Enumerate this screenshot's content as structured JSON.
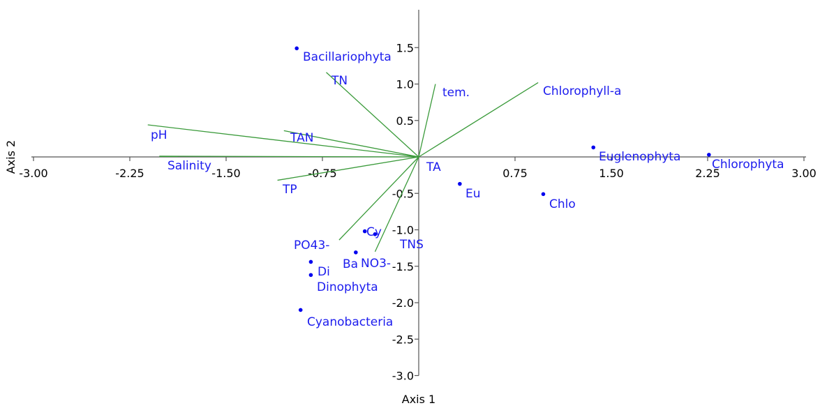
{
  "chart_data": {
    "type": "scatter",
    "xlabel": "Axis 1",
    "ylabel": "Axis 2",
    "xlim": [
      -3.0,
      3.0
    ],
    "ylim": [
      -3.0,
      2.0
    ],
    "x_ticks": [
      {
        "value": -3.0,
        "label": "-3.00"
      },
      {
        "value": -2.25,
        "label": "-2.25"
      },
      {
        "value": -1.5,
        "label": "-1.50"
      },
      {
        "value": -0.75,
        "label": "-0.75"
      },
      {
        "value": 0.75,
        "label": "0.75"
      },
      {
        "value": 1.5,
        "label": "1.50"
      },
      {
        "value": 2.25,
        "label": "2.25"
      },
      {
        "value": 3.0,
        "label": "3.00"
      }
    ],
    "y_ticks": [
      {
        "value": 1.5,
        "label": "1.5"
      },
      {
        "value": 1.0,
        "label": "1.0"
      },
      {
        "value": 0.5,
        "label": "0.5"
      },
      {
        "value": -0.5,
        "label": "-0.5"
      },
      {
        "value": -1.0,
        "label": "-1.0"
      },
      {
        "value": -1.5,
        "label": "-1.5"
      },
      {
        "value": -2.0,
        "label": "-2.0"
      },
      {
        "value": -2.5,
        "label": "-2.5"
      },
      {
        "value": -3.0,
        "label": "-3.0"
      }
    ],
    "grid": false,
    "colors": {
      "points": "#0000ee",
      "vectors": "#3a9a3a",
      "labels": "#1c1cee",
      "axes": "#555555"
    },
    "vectors": [
      {
        "label": "pH",
        "x": -2.11,
        "y": 0.44
      },
      {
        "label": "Salinity",
        "x": -2.02,
        "y": 0.01
      },
      {
        "label": "TAN",
        "x": -1.05,
        "y": 0.36
      },
      {
        "label": "TP",
        "x": -1.1,
        "y": -0.32
      },
      {
        "label": "TN",
        "x": -0.72,
        "y": 1.16
      },
      {
        "label": "tem.",
        "x": 0.13,
        "y": 1.0
      },
      {
        "label": "Chlorophyll-a",
        "x": 0.93,
        "y": 1.02
      },
      {
        "label": "PO43-",
        "x": -0.62,
        "y": -1.14
      },
      {
        "label": "NO3-",
        "x": -0.34,
        "y": -1.3
      },
      {
        "label": "TA",
        "x": 0.0,
        "y": 0.0
      }
    ],
    "points": [
      {
        "label": "Bacillariophyta",
        "x": -0.95,
        "y": 1.49
      },
      {
        "label": "Euglenophyta",
        "x": 1.36,
        "y": 0.13
      },
      {
        "label": "Chlorophyta",
        "x": 2.26,
        "y": 0.03
      },
      {
        "label": "Eu",
        "x": 0.32,
        "y": -0.37
      },
      {
        "label": "Chlo",
        "x": 0.97,
        "y": -0.51
      },
      {
        "label": "Cy",
        "x": -0.42,
        "y": -1.02
      },
      {
        "label": "TNS",
        "x": -0.34,
        "y": -1.06
      },
      {
        "label": "Ba",
        "x": -0.49,
        "y": -1.31
      },
      {
        "label": "Di",
        "x": -0.84,
        "y": -1.44
      },
      {
        "label": "Dinophyta",
        "x": -0.84,
        "y": -1.62
      },
      {
        "label": "Cyanobacteria",
        "x": -0.92,
        "y": -2.1
      }
    ]
  }
}
